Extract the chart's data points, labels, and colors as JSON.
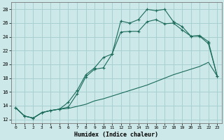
{
  "xlabel": "Humidex (Indice chaleur)",
  "bg_color": "#cde8e8",
  "grid_color": "#a8d0d0",
  "line_color": "#1a6b5a",
  "xlim": [
    -0.5,
    23.5
  ],
  "ylim": [
    11.5,
    29.0
  ],
  "xticks": [
    0,
    1,
    2,
    3,
    4,
    5,
    6,
    7,
    8,
    9,
    10,
    11,
    12,
    13,
    14,
    15,
    16,
    17,
    18,
    19,
    20,
    21,
    22,
    23
  ],
  "yticks": [
    12,
    14,
    16,
    18,
    20,
    22,
    24,
    26,
    28
  ],
  "curve_top_x": [
    0,
    1,
    2,
    3,
    4,
    5,
    6,
    7,
    8,
    9,
    10,
    11,
    12,
    13,
    14,
    15,
    16,
    17,
    18,
    19,
    20,
    21,
    22,
    23
  ],
  "curve_top_y": [
    13.7,
    12.5,
    12.2,
    13.0,
    13.3,
    13.5,
    14.5,
    16.2,
    18.5,
    19.5,
    21.0,
    21.5,
    26.3,
    26.0,
    26.5,
    28.0,
    27.8,
    28.0,
    26.2,
    25.5,
    24.1,
    24.2,
    23.3,
    18.3
  ],
  "curve_mid_x": [
    0,
    1,
    2,
    3,
    4,
    5,
    6,
    7,
    8,
    9,
    10,
    11,
    12,
    13,
    14,
    15,
    16,
    17,
    18,
    19,
    20,
    21,
    22,
    23
  ],
  "curve_mid_y": [
    13.7,
    12.5,
    12.2,
    13.0,
    13.3,
    13.5,
    13.8,
    15.7,
    18.2,
    19.3,
    19.5,
    21.5,
    24.7,
    24.8,
    24.8,
    26.2,
    26.5,
    25.9,
    26.0,
    25.0,
    24.1,
    24.1,
    23.0,
    18.3
  ],
  "curve_bot_x": [
    0,
    1,
    2,
    3,
    4,
    5,
    6,
    7,
    8,
    9,
    10,
    11,
    12,
    13,
    14,
    15,
    16,
    17,
    18,
    19,
    20,
    21,
    22,
    23
  ],
  "curve_bot_y": [
    13.7,
    12.5,
    12.2,
    13.0,
    13.3,
    13.5,
    13.6,
    13.9,
    14.2,
    14.7,
    15.0,
    15.4,
    15.8,
    16.2,
    16.6,
    17.0,
    17.5,
    18.0,
    18.5,
    18.9,
    19.3,
    19.7,
    20.3,
    18.3
  ]
}
